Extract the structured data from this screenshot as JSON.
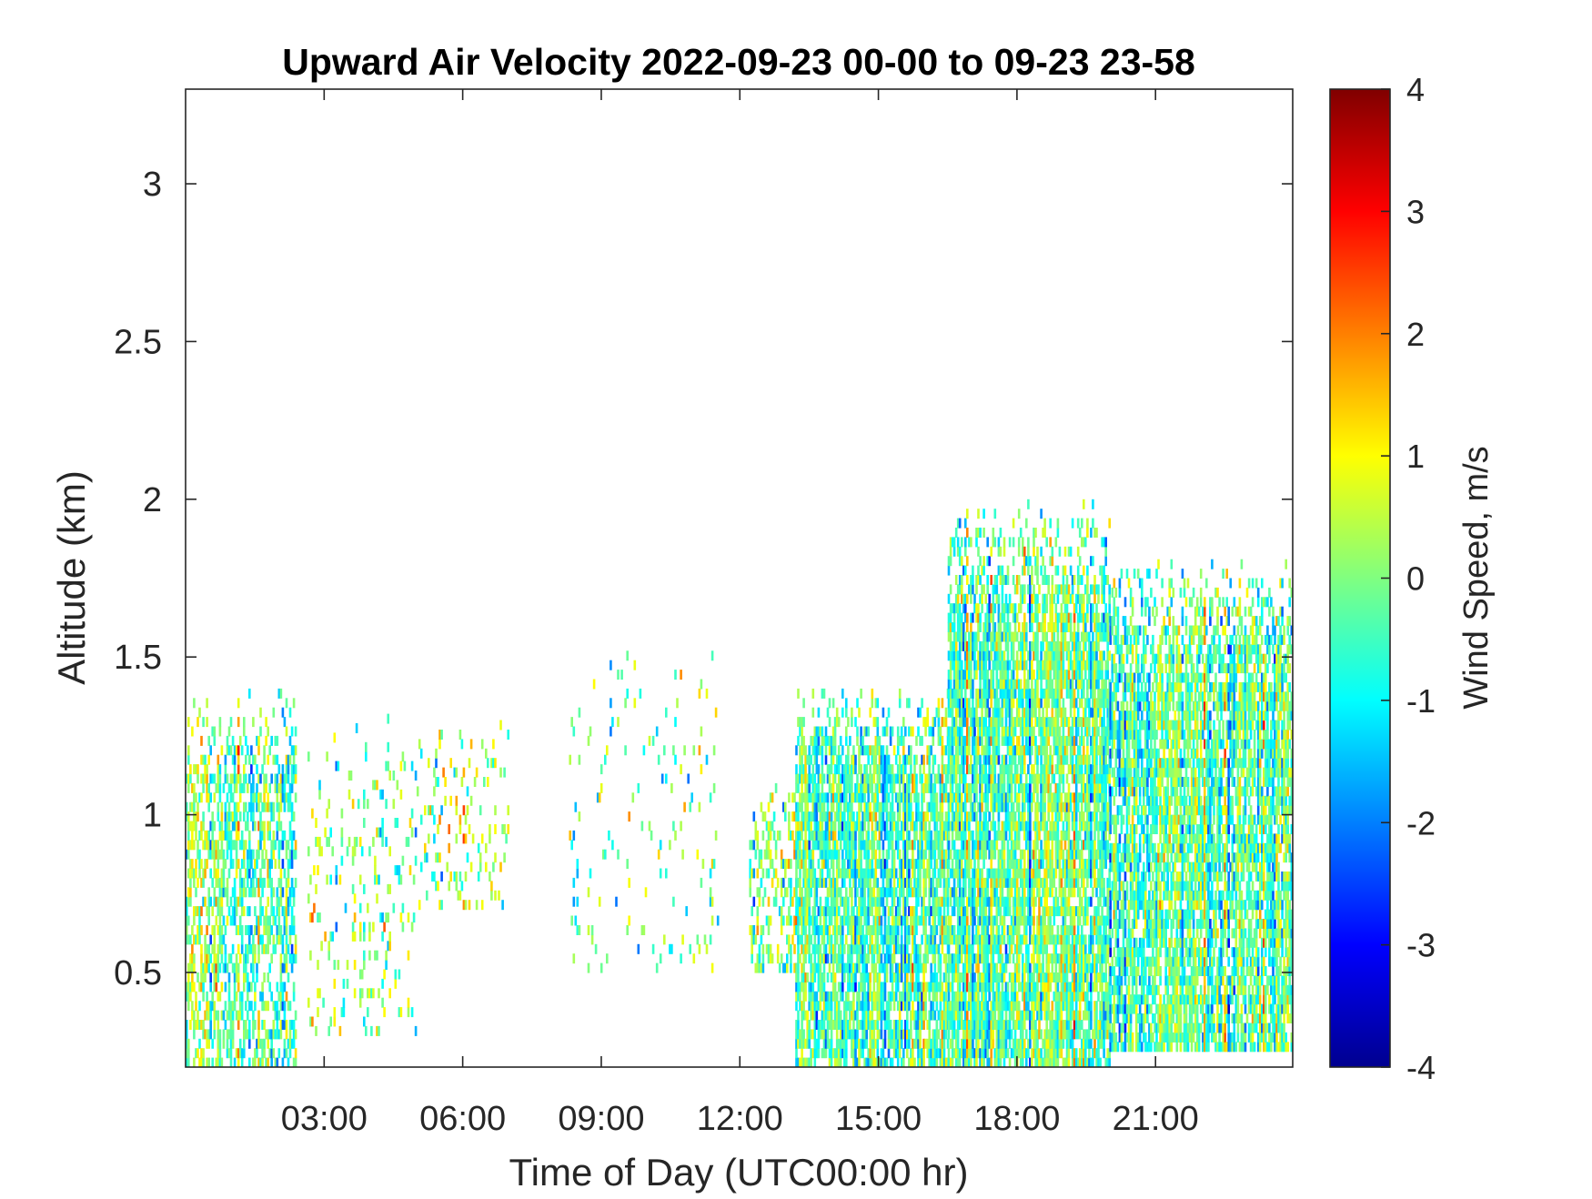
{
  "chart_data": {
    "type": "heatmap",
    "title": "Upward Air Velocity 2022-09-23 00-00 to 09-23 23-58",
    "xlabel": "Time of Day (UTC00:00 hr)",
    "ylabel": "Altitude (km)",
    "x_unit": "hours UTC",
    "xlim": [
      0.0,
      23.97
    ],
    "ylim": [
      0.2,
      3.3
    ],
    "x_ticks": [
      {
        "value": 3,
        "label": "03:00"
      },
      {
        "value": 6,
        "label": "06:00"
      },
      {
        "value": 9,
        "label": "09:00"
      },
      {
        "value": 12,
        "label": "12:00"
      },
      {
        "value": 15,
        "label": "15:00"
      },
      {
        "value": 18,
        "label": "18:00"
      },
      {
        "value": 21,
        "label": "21:00"
      }
    ],
    "y_ticks": [
      {
        "value": 0.5,
        "label": "0.5"
      },
      {
        "value": 1.0,
        "label": "1"
      },
      {
        "value": 1.5,
        "label": "1.5"
      },
      {
        "value": 2.0,
        "label": "2"
      },
      {
        "value": 2.5,
        "label": "2.5"
      },
      {
        "value": 3.0,
        "label": "3"
      }
    ],
    "colorbar": {
      "label": "Wind Speed, m/s",
      "colormap": "jet",
      "range": [
        -4,
        4
      ],
      "ticks": [
        {
          "value": 4,
          "label": "4"
        },
        {
          "value": 3,
          "label": "3"
        },
        {
          "value": 2,
          "label": "2"
        },
        {
          "value": 1,
          "label": "1"
        },
        {
          "value": 0,
          "label": "0"
        },
        {
          "value": -1,
          "label": "-1"
        },
        {
          "value": -2,
          "label": "-2"
        },
        {
          "value": -3,
          "label": "-3"
        },
        {
          "value": -4,
          "label": "-4"
        }
      ]
    },
    "grid": false,
    "echo_regions": [
      {
        "t_start": 0.0,
        "t_end": 2.4,
        "alt_bottom": 0.2,
        "alt_top": 1.4,
        "density": 0.5,
        "mean_w": -0.3
      },
      {
        "t_start": 2.6,
        "t_end": 5.0,
        "alt_bottom": 0.3,
        "alt_top": 1.3,
        "density": 0.12,
        "mean_w": 0.0
      },
      {
        "t_start": 5.0,
        "t_end": 7.0,
        "alt_bottom": 0.7,
        "alt_top": 1.3,
        "density": 0.15,
        "mean_w": 0.2
      },
      {
        "t_start": 8.3,
        "t_end": 11.5,
        "alt_bottom": 0.5,
        "alt_top": 1.5,
        "density": 0.06,
        "mean_w": -0.4
      },
      {
        "t_start": 12.2,
        "t_end": 13.2,
        "alt_bottom": 0.5,
        "alt_top": 1.1,
        "density": 0.35,
        "mean_w": 0.0
      },
      {
        "t_start": 13.2,
        "t_end": 16.5,
        "alt_bottom": 0.2,
        "alt_top": 1.4,
        "density": 0.75,
        "mean_w": -0.4
      },
      {
        "t_start": 16.5,
        "t_end": 20.0,
        "alt_bottom": 0.2,
        "alt_top": 2.0,
        "density": 0.8,
        "mean_w": -0.2
      },
      {
        "t_start": 20.0,
        "t_end": 23.97,
        "alt_bottom": 0.25,
        "alt_top": 1.8,
        "density": 0.75,
        "mean_w": -0.3
      }
    ]
  }
}
